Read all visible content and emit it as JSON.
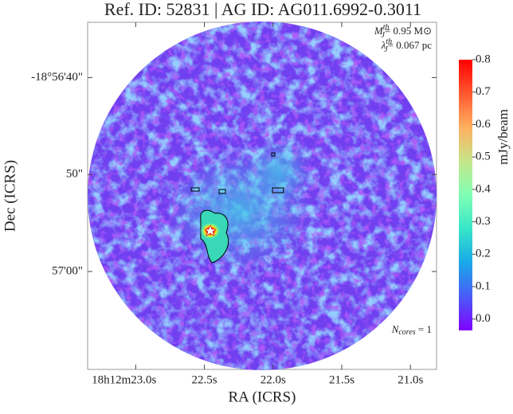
{
  "chart_data": {
    "type": "image",
    "title": "Ref. ID: 52831 | AG ID: AG011.6992-0.3011",
    "xlabel": "RA (ICRS)",
    "ylabel": "Dec (ICRS)",
    "xlim": [
      23.35,
      20.81
    ],
    "xticks": [
      {
        "value": 23.0,
        "label": "18h12m23.0s"
      },
      {
        "value": 22.5,
        "label": "22.5s"
      },
      {
        "value": 22.0,
        "label": "22.0s"
      },
      {
        "value": 21.5,
        "label": "21.5s"
      },
      {
        "value": 21.0,
        "label": "21.0s"
      }
    ],
    "ylim": [
      34.3,
      70.1
    ],
    "yticks": [
      {
        "value": 40,
        "label": "-18°56'40\""
      },
      {
        "value": 50,
        "label": "50\""
      },
      {
        "value": 60,
        "label": "57'00\""
      }
    ],
    "colorbar": {
      "label": "mJy/beam",
      "colormap": "rainbow",
      "clim": [
        -0.035,
        0.8
      ],
      "ticks": [
        {
          "value": 0.0,
          "label": "0.0"
        },
        0.1,
        0.2,
        0.3,
        0.4,
        0.5,
        0.6,
        0.7,
        0.8
      ]
    },
    "annotations": [
      {
        "symbol": "M",
        "sub": "J",
        "sup": "th",
        "text": "= 0.95 M⊙"
      },
      {
        "symbol": "λ",
        "sub": "J",
        "sup": "th",
        "text": "= 0.067 pc"
      },
      {
        "symbol": "N",
        "sub": "cores",
        "text": " = 1"
      }
    ]
  }
}
